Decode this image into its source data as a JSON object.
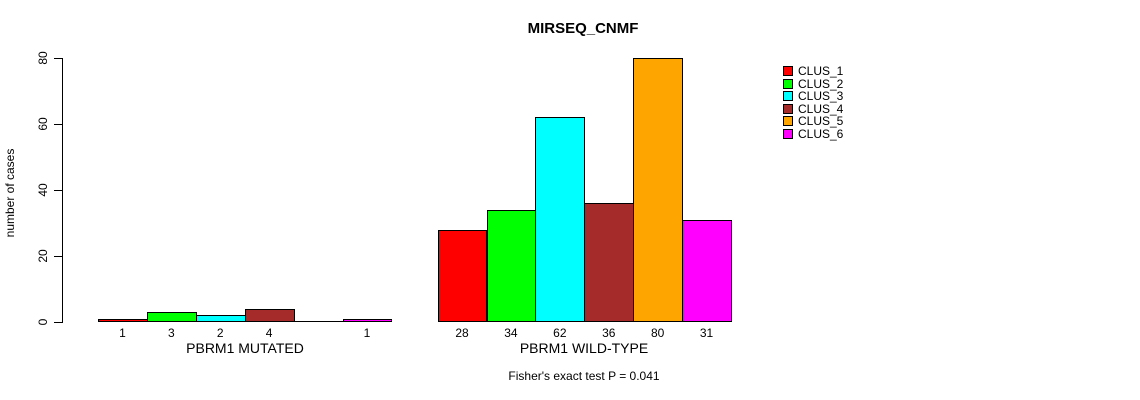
{
  "chart_data": {
    "type": "bar",
    "title": "MIRSEQ_CNMF",
    "ylabel": "number of cases",
    "xlabel": "",
    "ylim": [
      0,
      80
    ],
    "yticks": [
      0,
      20,
      40,
      60,
      80
    ],
    "grid": false,
    "legend_position": "top-right",
    "outline_color": "#000000",
    "series_names": [
      "CLUS_1",
      "CLUS_2",
      "CLUS_3",
      "CLUS_4",
      "CLUS_5",
      "CLUS_6"
    ],
    "series_colors": [
      "#FF0000",
      "#00FF00",
      "#00FFFF",
      "#A52A2A",
      "#FFA500",
      "#FF00FF"
    ],
    "groups": [
      {
        "label": "PBRM1 MUTATED",
        "values": [
          1,
          3,
          2,
          4,
          0,
          1
        ],
        "bar_labels": [
          "1",
          "3",
          "2",
          "4",
          "",
          "1"
        ]
      },
      {
        "label": "PBRM1 WILD-TYPE",
        "values": [
          28,
          34,
          62,
          36,
          80,
          31
        ],
        "bar_labels": [
          "28",
          "34",
          "62",
          "36",
          "80",
          "31"
        ]
      }
    ],
    "annotation": "Fisher's exact test P = 0.041"
  }
}
